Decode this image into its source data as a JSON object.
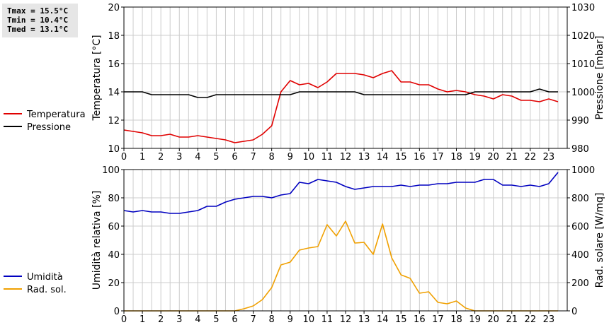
{
  "stats": [
    {
      "label": "Tmax",
      "value": "15.5°C"
    },
    {
      "label": "Tmin",
      "value": "10.4°C"
    },
    {
      "label": "Tmed",
      "value": "13.1°C"
    }
  ],
  "chart_data": [
    {
      "type": "line",
      "xlim": [
        0,
        24
      ],
      "x_ticks": [
        "0",
        "1",
        "2",
        "3",
        "4",
        "5",
        "6",
        "7",
        "8",
        "9",
        "10",
        "11",
        "12",
        "13",
        "14",
        "15",
        "16",
        "17",
        "18",
        "19",
        "20",
        "21",
        "22",
        "23"
      ],
      "ylabel": "Temperatura [°C]",
      "ylim": [
        10,
        20
      ],
      "y_ticks": [
        "10",
        "12",
        "14",
        "16",
        "18",
        "20"
      ],
      "ylabel_right": "Pressione [mbar]",
      "ylim_right": [
        980,
        1030
      ],
      "y_ticks_right": [
        "980",
        "990",
        "1000",
        "1010",
        "1020",
        "1030"
      ],
      "grid": true,
      "legend_position": "left",
      "series": [
        {
          "name": "Temperatura",
          "color": "#e00000",
          "axis": "left",
          "values": [
            11.3,
            11.2,
            11.1,
            10.9,
            10.9,
            11.0,
            10.8,
            10.8,
            10.9,
            10.8,
            10.7,
            10.6,
            10.4,
            10.5,
            10.6,
            11.0,
            11.6,
            14.0,
            14.8,
            14.5,
            14.6,
            14.3,
            14.7,
            15.3,
            15.3,
            15.3,
            15.2,
            15.0,
            15.3,
            15.5,
            14.7,
            14.7,
            14.5,
            14.5,
            14.2,
            14.0,
            14.1,
            14.0,
            13.8,
            13.7,
            13.5,
            13.8,
            13.7,
            13.4,
            13.4,
            13.3,
            13.5,
            13.3
          ]
        },
        {
          "name": "Pressione",
          "color": "#000000",
          "axis": "right",
          "values": [
            1000,
            1000,
            1000,
            999,
            999,
            999,
            999,
            999,
            998,
            998,
            999,
            999,
            999,
            999,
            999,
            999,
            999,
            999,
            999,
            1000,
            1000,
            1000,
            1000,
            1000,
            1000,
            1000,
            999,
            999,
            999,
            999,
            999,
            999,
            999,
            999,
            999,
            999,
            999,
            999,
            1000,
            1000,
            1000,
            1000,
            1000,
            1000,
            1000,
            1001,
            1000,
            1000
          ]
        }
      ]
    },
    {
      "type": "line",
      "xlim": [
        0,
        24
      ],
      "x_ticks": [
        "0",
        "1",
        "2",
        "3",
        "4",
        "5",
        "6",
        "7",
        "8",
        "9",
        "10",
        "11",
        "12",
        "13",
        "14",
        "15",
        "16",
        "17",
        "18",
        "19",
        "20",
        "21",
        "22",
        "23"
      ],
      "ylabel": "Umidità relativa [%]",
      "ylim": [
        0,
        100
      ],
      "y_ticks": [
        "0",
        "20",
        "40",
        "60",
        "80",
        "100"
      ],
      "ylabel_right": "Rad. solare [W/mq]",
      "ylim_right": [
        0,
        1000
      ],
      "y_ticks_right": [
        "0",
        "200",
        "400",
        "600",
        "800",
        "1000"
      ],
      "grid": true,
      "legend_position": "left",
      "series": [
        {
          "name": "Umidità",
          "color": "#0000c0",
          "axis": "left",
          "values": [
            71,
            70,
            71,
            70,
            70,
            69,
            69,
            70,
            71,
            74,
            74,
            77,
            79,
            80,
            81,
            81,
            80,
            82,
            83,
            91,
            90,
            93,
            92,
            91,
            88,
            86,
            87,
            88,
            88,
            88,
            89,
            88,
            89,
            89,
            90,
            90,
            91,
            91,
            91,
            93,
            93,
            89,
            89,
            88,
            89,
            88,
            90,
            98
          ]
        },
        {
          "name": "Rad. sol.",
          "color": "#f0a000",
          "axis": "right",
          "values": [
            0,
            0,
            0,
            0,
            0,
            0,
            0,
            0,
            0,
            0,
            0,
            0,
            0,
            15,
            35,
            80,
            165,
            325,
            345,
            430,
            445,
            455,
            610,
            530,
            635,
            480,
            485,
            400,
            615,
            375,
            255,
            230,
            125,
            135,
            60,
            50,
            70,
            20,
            0,
            0,
            0,
            0,
            0,
            0,
            0,
            0,
            0,
            0
          ]
        }
      ]
    }
  ]
}
